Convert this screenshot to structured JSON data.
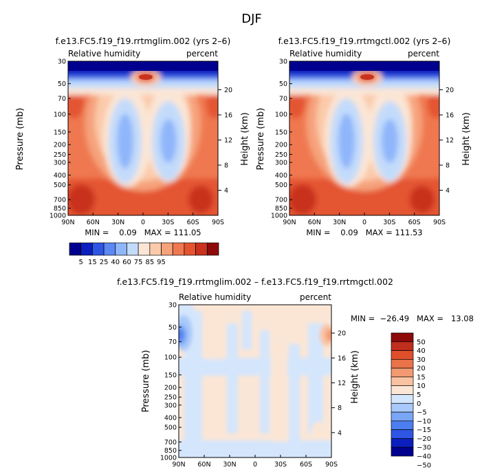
{
  "figure_title": "DJF",
  "colors": {
    "abs_palette": [
      "#00008f",
      "#0a1fbd",
      "#2f55e4",
      "#5b88f3",
      "#8fb6fa",
      "#c3dbfb",
      "#fbe6d6",
      "#fbcaaa",
      "#f6a27b",
      "#ef7850",
      "#e45430",
      "#c8321f",
      "#8e0a0a"
    ],
    "diff_palette": [
      "#00008f",
      "#0a1fbd",
      "#2f55e4",
      "#4d7ef0",
      "#7aa6f6",
      "#a9c9fa",
      "#d4e6fc",
      "#fbe6d6",
      "#f9c3a3",
      "#f39a72",
      "#eb7349",
      "#e04f2c",
      "#c02e1e",
      "#8e0a0a"
    ]
  },
  "chart_data": [
    {
      "id": "panel1",
      "type": "heatmap",
      "title": "f.e13.FC5.f19_f19.rrtmglim.002 (yrs 2–6)",
      "subtitle_left": "Relative humidity",
      "subtitle_right": "percent",
      "ylabel": "Pressure (mb)",
      "ylabel_right": "Height (km)",
      "x_ticks": [
        "90N",
        "60N",
        "30N",
        "0",
        "30S",
        "60S",
        "90S"
      ],
      "y_ticks": [
        "30",
        "50",
        "70",
        "100",
        "150",
        "200",
        "250",
        "300",
        "400",
        "500",
        "700",
        "850",
        "1000"
      ],
      "height_ticks": [
        "20",
        "16",
        "12",
        "8",
        "4"
      ],
      "stats": "MIN =    0.09   MAX = 111.05",
      "palette": "abs"
    },
    {
      "id": "panel2",
      "type": "heatmap",
      "title": "f.e13.FC5.f19_f19.rrtmgctl.002 (yrs 2–6)",
      "subtitle_left": "Relative humidity",
      "subtitle_right": "percent",
      "ylabel": "Pressure (mb)",
      "ylabel_right": "Height (km)",
      "x_ticks": [
        "90N",
        "60N",
        "30N",
        "0",
        "30S",
        "60S",
        "90S"
      ],
      "y_ticks": [
        "30",
        "50",
        "70",
        "100",
        "150",
        "200",
        "250",
        "300",
        "400",
        "500",
        "700",
        "850",
        "1000"
      ],
      "height_ticks": [
        "20",
        "16",
        "12",
        "8",
        "4"
      ],
      "stats": "MIN =    0.09   MAX = 111.53",
      "palette": "abs"
    },
    {
      "id": "panel3",
      "type": "heatmap",
      "title": "f.e13.FC5.f19_f19.rrtmglim.002 – f.e13.FC5.f19_f19.rrtmgctl.002",
      "subtitle_left": "Relative humidity",
      "subtitle_right": "percent",
      "ylabel": "Pressure (mb)",
      "ylabel_right": "Height (km)",
      "x_ticks": [
        "90N",
        "60N",
        "30N",
        "0",
        "30S",
        "60S",
        "90S"
      ],
      "y_ticks": [
        "30",
        "50",
        "70",
        "100",
        "150",
        "200",
        "250",
        "300",
        "400",
        "500",
        "700",
        "850",
        "1000"
      ],
      "height_ticks": [
        "20",
        "16",
        "12",
        "8",
        "4"
      ],
      "stats": "MIN =  −26.49   MAX =   13.08",
      "palette": "diff"
    }
  ],
  "colorbar_abs": {
    "labels": [
      "5",
      "15",
      "25",
      "40",
      "60",
      "75",
      "85",
      "95"
    ]
  },
  "colorbar_diff": {
    "labels": [
      "50",
      "40",
      "30",
      "20",
      "15",
      "10",
      "5",
      "0",
      "−5",
      "−10",
      "−15",
      "−20",
      "−30",
      "−40",
      "−50"
    ]
  }
}
